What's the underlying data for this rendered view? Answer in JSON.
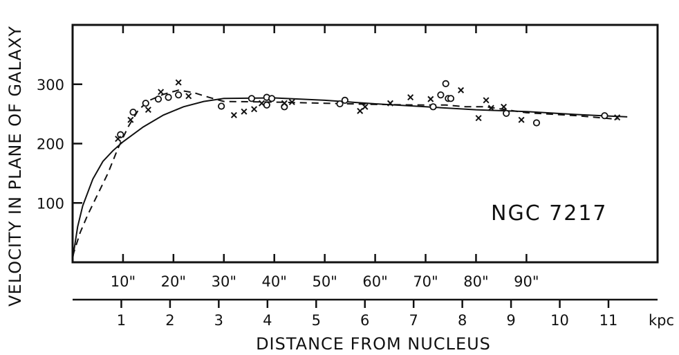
{
  "chart_data": {
    "type": "scatter",
    "title": "",
    "annotation": "NGC 7217",
    "ylabel": "VELOCITY  IN PLANE OF GALAXY",
    "xlabel": "DISTANCE   FROM   NUCLEUS",
    "x_unit": "kpc",
    "ylim": [
      0,
      400
    ],
    "y_ticks": [
      100,
      200,
      300
    ],
    "y_tick_labels": [
      "100",
      "200",
      "300"
    ],
    "arcsec_ticks": [
      10,
      20,
      30,
      40,
      50,
      60,
      70,
      80,
      90
    ],
    "arcsec_tick_labels": [
      "10\"",
      "20\"",
      "30\"",
      "40\"",
      "50\"",
      "60\"",
      "70\"",
      "80\"",
      "90\""
    ],
    "kpc_ticks": [
      1,
      2,
      3,
      4,
      5,
      6,
      7,
      8,
      9,
      10,
      11
    ],
    "kpc_tick_labels": [
      "1",
      "2",
      "3",
      "4",
      "5",
      "6",
      "7",
      "8",
      "9",
      "10",
      "11"
    ],
    "x_range_arcsec": [
      0,
      116
    ],
    "grid": false,
    "series": [
      {
        "marker": "circle",
        "x": [
          9.5,
          12,
          14.5,
          17,
          19,
          21,
          29.5,
          35.5,
          38.5,
          38.5,
          39.5,
          42,
          53,
          54,
          71.5,
          73,
          74,
          74.5,
          75,
          86,
          92,
          105.5
        ],
        "y": [
          215,
          253,
          268,
          275,
          278,
          282,
          263,
          276,
          265,
          278,
          276,
          262,
          267,
          273,
          262,
          282,
          301,
          276,
          276,
          251,
          235,
          247
        ]
      },
      {
        "marker": "x",
        "x": [
          9,
          11.5,
          15,
          17.5,
          21,
          23,
          32,
          34,
          36,
          37.5,
          42,
          43.5,
          57,
          58,
          63,
          67,
          71,
          77,
          80.5,
          82,
          83,
          85.5,
          89,
          108
        ],
        "y": [
          208,
          240,
          257,
          287,
          303,
          280,
          248,
          254,
          258,
          268,
          268,
          270,
          255,
          262,
          268,
          278,
          275,
          290,
          243,
          273,
          260,
          262,
          240,
          244
        ]
      },
      {
        "style": "solid",
        "x": [
          0,
          1,
          2,
          4,
          6,
          8,
          10,
          14,
          18,
          22,
          26,
          30,
          40,
          50,
          60,
          70,
          80,
          90,
          100,
          110
        ],
        "y": [
          5,
          60,
          95,
          140,
          170,
          188,
          203,
          228,
          248,
          262,
          271,
          276,
          277,
          273,
          267,
          262,
          257,
          254,
          249,
          245
        ]
      },
      {
        "style": "dashed",
        "x": [
          0,
          1.5,
          3,
          5,
          7,
          9,
          11,
          13,
          15,
          18,
          21,
          24,
          27,
          30,
          40,
          50,
          60,
          70,
          74,
          78,
          82,
          86,
          90,
          100,
          108
        ],
        "y": [
          10,
          50,
          80,
          115,
          150,
          192,
          228,
          256,
          272,
          283,
          290,
          286,
          278,
          271,
          270,
          268,
          266,
          265,
          265,
          262,
          262,
          257,
          252,
          247,
          241
        ]
      }
    ]
  }
}
